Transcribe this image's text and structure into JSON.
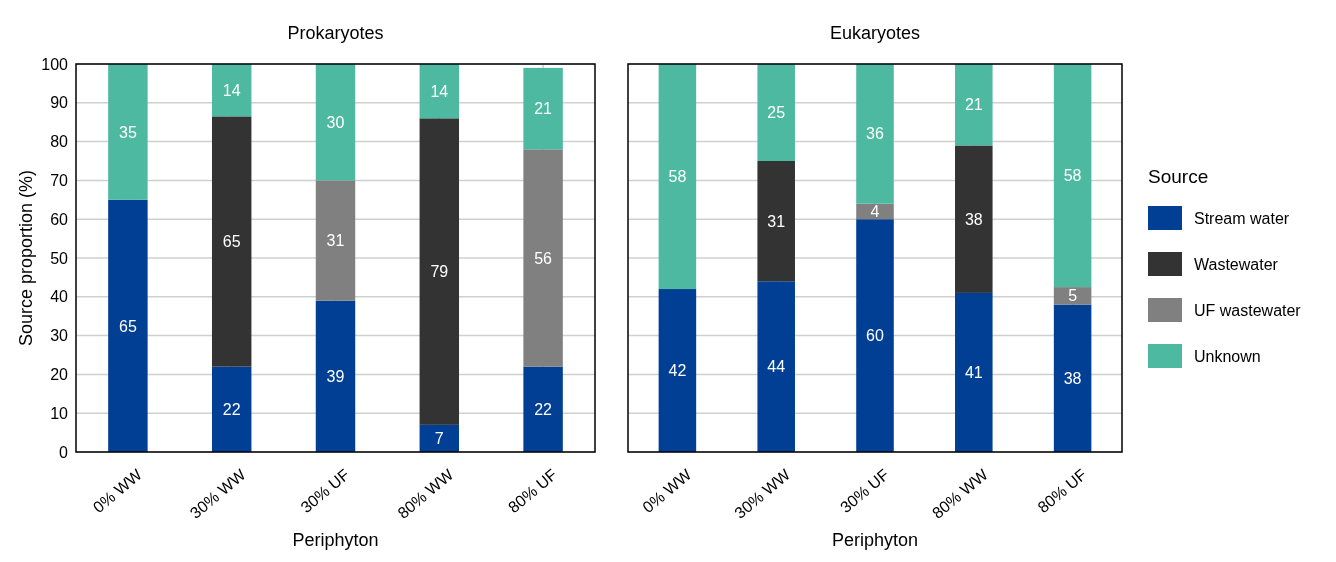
{
  "chart_data": [
    {
      "type": "bar",
      "title": "Prokaryotes",
      "xlabel": "Periphyton",
      "ylabel": "Source proportion (%)",
      "stacked": true,
      "categories": [
        "0% WW",
        "30% WW",
        "30% UF",
        "80% WW",
        "80% UF"
      ],
      "ylim": [
        0,
        100
      ],
      "yticks": [
        0,
        10,
        20,
        30,
        40,
        50,
        60,
        70,
        80,
        90,
        100
      ],
      "grid": true,
      "legend": false,
      "series": [
        {
          "color": "#003f94",
          "values": [
            65,
            22,
            39,
            7,
            22
          ],
          "value_labels": [
            "65",
            "22",
            "39",
            "7",
            "22"
          ]
        },
        {
          "color": "#333333",
          "values": [
            null,
            64.5,
            null,
            79,
            null
          ],
          "value_labels": [
            null,
            "65",
            null,
            "79",
            null
          ]
        },
        {
          "color": "#808080",
          "values": [
            null,
            null,
            31,
            null,
            56
          ],
          "value_labels": [
            null,
            null,
            "31",
            null,
            "56"
          ]
        },
        {
          "color": "#4db9a0",
          "values": [
            35,
            13.5,
            30,
            14,
            21
          ],
          "value_labels": [
            "35",
            "14",
            "30",
            "14",
            "21"
          ]
        }
      ]
    },
    {
      "type": "bar",
      "title": "Eukaryotes",
      "xlabel": "Periphyton",
      "stacked": true,
      "categories": [
        "0% WW",
        "30% WW",
        "30% UF",
        "80% WW",
        "80% UF"
      ],
      "ylim": [
        0,
        100
      ],
      "yticks": [
        0,
        10,
        20,
        30,
        40,
        50,
        60,
        70,
        80,
        90,
        100
      ],
      "grid": true,
      "tick_labels": "x",
      "legend": "right",
      "legend_title": "Source",
      "series": [
        {
          "name": "Stream water",
          "color": "#003f94",
          "values": [
            42,
            44,
            60,
            41,
            38
          ],
          "value_labels": [
            "42",
            "44",
            "60",
            "41",
            "38"
          ]
        },
        {
          "name": "Wastewater",
          "color": "#333333",
          "values": [
            null,
            31,
            null,
            38,
            null
          ],
          "value_labels": [
            null,
            "31",
            null,
            "38",
            null
          ]
        },
        {
          "name": "UF wastewater",
          "color": "#808080",
          "values": [
            null,
            null,
            4,
            null,
            4.5
          ],
          "value_labels": [
            null,
            null,
            "4",
            null,
            "5"
          ]
        },
        {
          "name": "Unknown",
          "color": "#4db9a0",
          "values": [
            58,
            25,
            36,
            21,
            57.5
          ],
          "value_labels": [
            "58",
            "25",
            "36",
            "21",
            "58"
          ]
        }
      ]
    }
  ]
}
